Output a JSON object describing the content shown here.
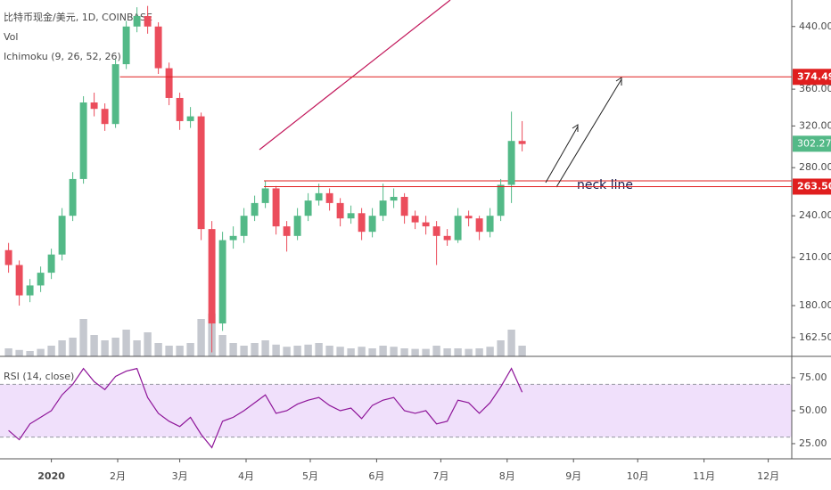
{
  "chart_data": {
    "type": "candlestick",
    "title": "比特币现金/美元, 1D, COINBASE",
    "volume_label": "Vol",
    "ichimoku_label": "Ichimoku (9, 26, 52, 26)",
    "rsi_label": "RSI (14, close)",
    "log": true,
    "up_color": "#53b987",
    "down_color": "#eb4d5c",
    "volume_color": "#c5c8cf",
    "rsi_color": "#8e1599",
    "rsi_band_color": "#f0e0fb",
    "x": [
      -20,
      -15,
      -10,
      -5,
      0,
      5,
      10,
      15,
      20,
      25,
      30,
      35,
      40,
      45,
      50,
      55,
      60,
      65,
      70,
      75,
      80,
      85,
      90,
      95,
      100,
      105,
      110,
      115,
      120,
      125,
      130,
      135,
      140,
      145,
      150,
      155,
      160,
      165,
      170,
      175,
      180,
      185,
      190,
      195,
      200,
      205,
      210,
      215,
      220
    ],
    "open": [
      215,
      205,
      186,
      192,
      200,
      212,
      240,
      270,
      345,
      338,
      322,
      390,
      440,
      455,
      440,
      385,
      350,
      325,
      330,
      230,
      170,
      222,
      225,
      240,
      250,
      262,
      232,
      225,
      240,
      252,
      258,
      250,
      238,
      242,
      228,
      240,
      252,
      255,
      240,
      235,
      232,
      225,
      222,
      240,
      238,
      228,
      240,
      265,
      305
    ],
    "high": [
      220,
      208,
      196,
      204,
      216,
      246,
      276,
      352,
      356,
      344,
      396,
      448,
      468,
      470,
      446,
      392,
      356,
      340,
      334,
      236,
      228,
      232,
      246,
      256,
      268,
      264,
      236,
      246,
      258,
      266,
      262,
      254,
      248,
      246,
      246,
      266,
      262,
      258,
      244,
      240,
      236,
      230,
      246,
      244,
      240,
      246,
      270,
      335,
      325
    ],
    "low": [
      200,
      180,
      182,
      188,
      196,
      208,
      236,
      266,
      330,
      315,
      318,
      384,
      432,
      430,
      378,
      342,
      316,
      318,
      222,
      155,
      166,
      216,
      220,
      236,
      246,
      226,
      214,
      222,
      236,
      248,
      244,
      232,
      234,
      222,
      224,
      236,
      246,
      234,
      230,
      226,
      205,
      218,
      220,
      232,
      222,
      224,
      236,
      250,
      295
    ],
    "close": [
      205,
      186,
      192,
      200,
      212,
      240,
      270,
      345,
      338,
      322,
      390,
      440,
      455,
      440,
      385,
      350,
      325,
      330,
      230,
      170,
      222,
      225,
      240,
      250,
      262,
      232,
      225,
      240,
      252,
      258,
      250,
      238,
      242,
      228,
      240,
      252,
      255,
      240,
      235,
      232,
      225,
      222,
      240,
      238,
      228,
      240,
      265,
      305,
      302
    ],
    "volume": [
      15,
      12,
      10,
      14,
      20,
      30,
      35,
      70,
      40,
      30,
      35,
      50,
      30,
      45,
      25,
      20,
      20,
      25,
      70,
      80,
      40,
      25,
      20,
      25,
      30,
      22,
      18,
      20,
      22,
      25,
      20,
      18,
      15,
      18,
      15,
      20,
      18,
      15,
      14,
      14,
      20,
      15,
      15,
      14,
      15,
      18,
      30,
      50,
      20
    ],
    "volume_lim": [
      0,
      150
    ],
    "rsi": [
      35,
      28,
      40,
      45,
      50,
      62,
      70,
      82,
      72,
      66,
      76,
      80,
      82,
      60,
      48,
      42,
      38,
      45,
      32,
      22,
      42,
      45,
      50,
      56,
      62,
      48,
      50,
      55,
      58,
      60,
      54,
      50,
      52,
      44,
      54,
      58,
      60,
      50,
      48,
      50,
      40,
      42,
      58,
      56,
      48,
      56,
      68,
      82,
      64
    ],
    "xlim": [
      -24,
      346
    ],
    "xticks": [
      {
        "value": 0,
        "label": "2020"
      },
      {
        "value": 31,
        "label": "2月"
      },
      {
        "value": 60,
        "label": "3月"
      },
      {
        "value": 91,
        "label": "4月"
      },
      {
        "value": 121,
        "label": "5月"
      },
      {
        "value": 152,
        "label": "6月"
      },
      {
        "value": 182,
        "label": "7月"
      },
      {
        "value": 213,
        "label": "8月"
      },
      {
        "value": 244,
        "label": "9月"
      },
      {
        "value": 274,
        "label": "10月"
      },
      {
        "value": 305,
        "label": "11月"
      },
      {
        "value": 335,
        "label": "12月"
      }
    ],
    "ylim": [
      153,
      479
    ],
    "yticks": [
      {
        "value": 440,
        "label": "440.00"
      },
      {
        "value": 360,
        "label": "360.00"
      },
      {
        "value": 320,
        "label": "320.00"
      },
      {
        "value": 280,
        "label": "280.00"
      },
      {
        "value": 240,
        "label": "240.00"
      },
      {
        "value": 210,
        "label": "210.00"
      },
      {
        "value": 180,
        "label": "180.00"
      },
      {
        "value": 162.5,
        "label": "162.50"
      }
    ],
    "rsi_ylim": [
      13.5,
      91.2
    ],
    "rsi_yticks": [
      {
        "value": 75,
        "label": "75.00"
      },
      {
        "value": 50,
        "label": "50.00"
      },
      {
        "value": 25,
        "label": "25.00"
      }
    ],
    "rsi_band": [
      30,
      70
    ],
    "price_lines": [
      {
        "value": 374.49,
        "label": "374.49",
        "color": "#e01e1e"
      },
      {
        "value": 263.5,
        "label": "263.50",
        "color": "#e01e1e"
      }
    ],
    "last_price": {
      "value": 302.27,
      "label": "302.27",
      "color": "#53b987"
    },
    "annotation": "neck line"
  }
}
